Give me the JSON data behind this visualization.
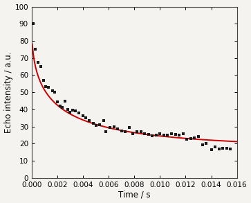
{
  "scatter_x": [
    0.0001,
    0.0003,
    0.0005,
    0.0007,
    0.0009,
    0.0011,
    0.0013,
    0.0016,
    0.0018,
    0.002,
    0.0022,
    0.0024,
    0.0026,
    0.0028,
    0.003,
    0.0032,
    0.0034,
    0.0037,
    0.004,
    0.0042,
    0.0045,
    0.0048,
    0.005,
    0.0053,
    0.0056,
    0.0058,
    0.0061,
    0.0064,
    0.0067,
    0.007,
    0.0073,
    0.0076,
    0.0079,
    0.0082,
    0.0085,
    0.0088,
    0.0091,
    0.0094,
    0.0097,
    0.01,
    0.0103,
    0.0106,
    0.0109,
    0.0112,
    0.0115,
    0.0118,
    0.0121,
    0.0124,
    0.0127,
    0.013,
    0.0133,
    0.0136,
    0.014,
    0.0143,
    0.0146,
    0.0149,
    0.0152,
    0.0155
  ],
  "scatter_y": [
    90.0,
    75.0,
    67.5,
    65.0,
    57.0,
    53.5,
    53.0,
    51.0,
    50.0,
    44.5,
    42.0,
    41.0,
    45.0,
    40.0,
    38.5,
    39.5,
    39.0,
    38.0,
    36.5,
    35.0,
    33.5,
    32.0,
    30.5,
    31.0,
    33.5,
    27.0,
    29.5,
    30.0,
    28.5,
    27.5,
    27.0,
    29.5,
    26.0,
    27.0,
    27.0,
    26.0,
    25.5,
    24.5,
    25.0,
    26.0,
    25.0,
    25.0,
    26.0,
    25.5,
    25.0,
    26.0,
    22.5,
    23.0,
    23.5,
    24.0,
    19.5,
    20.0,
    16.5,
    18.0,
    17.0,
    17.5,
    17.5,
    17.0
  ],
  "fit_A": 73.0,
  "fit_B": 17.0,
  "fit_tau": 0.0018,
  "fit_beta": 0.48,
  "xlabel": "Time / s",
  "ylabel": "Echo intensity / a.u.",
  "xlim": [
    0.0,
    0.016
  ],
  "ylim": [
    0,
    100
  ],
  "xticks": [
    0.0,
    0.002,
    0.004,
    0.006,
    0.008,
    0.01,
    0.012,
    0.014,
    0.016
  ],
  "yticks": [
    0,
    10,
    20,
    30,
    40,
    50,
    60,
    70,
    80,
    90,
    100
  ],
  "scatter_color": "#1a1a1a",
  "fit_color": "#cc0000",
  "background_color": "#f5f3f0",
  "figure_bg": "#f5f3f0",
  "xlabel_fontsize": 8.5,
  "ylabel_fontsize": 8.5,
  "tick_fontsize": 7.5
}
